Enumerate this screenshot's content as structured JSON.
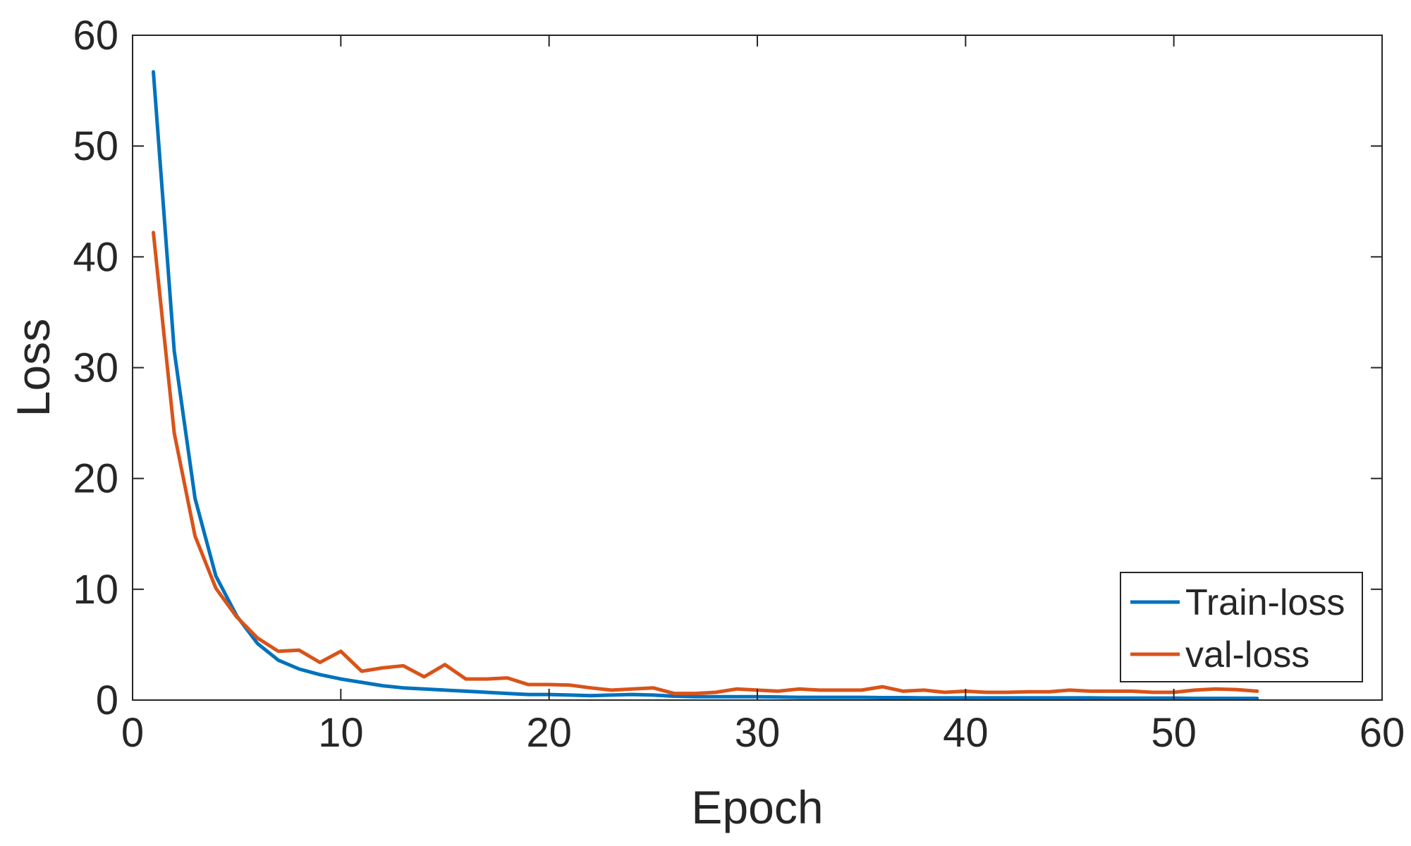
{
  "chart_data": {
    "type": "line",
    "title": "",
    "xlabel": "Epoch",
    "ylabel": "Loss",
    "xlim": [
      0,
      60
    ],
    "ylim": [
      0,
      60
    ],
    "xticks": [
      0,
      10,
      20,
      30,
      40,
      50,
      60
    ],
    "yticks": [
      0,
      10,
      20,
      30,
      40,
      50,
      60
    ],
    "grid": false,
    "legend_position": "bottom-right",
    "x": [
      1,
      2,
      3,
      4,
      5,
      6,
      7,
      8,
      9,
      10,
      11,
      12,
      13,
      14,
      15,
      16,
      17,
      18,
      19,
      20,
      21,
      22,
      23,
      24,
      25,
      26,
      27,
      28,
      29,
      30,
      31,
      32,
      33,
      34,
      35,
      36,
      37,
      38,
      39,
      40,
      41,
      42,
      43,
      44,
      45,
      46,
      47,
      48,
      49,
      50,
      51,
      52,
      53,
      54
    ],
    "series": [
      {
        "name": "Train-loss",
        "color": "#0072BD",
        "values": [
          56.7,
          31.5,
          18.2,
          11.2,
          7.6,
          5.1,
          3.6,
          2.8,
          2.3,
          1.9,
          1.6,
          1.3,
          1.1,
          1.0,
          0.9,
          0.8,
          0.7,
          0.6,
          0.5,
          0.5,
          0.45,
          0.4,
          0.45,
          0.5,
          0.45,
          0.35,
          0.3,
          0.3,
          0.3,
          0.3,
          0.28,
          0.25,
          0.25,
          0.25,
          0.25,
          0.22,
          0.22,
          0.2,
          0.2,
          0.2,
          0.2,
          0.2,
          0.2,
          0.2,
          0.2,
          0.2,
          0.18,
          0.18,
          0.18,
          0.18,
          0.15,
          0.15,
          0.15,
          0.15
        ]
      },
      {
        "name": "val-loss",
        "color": "#D95319",
        "values": [
          42.2,
          24.1,
          14.8,
          10.1,
          7.5,
          5.6,
          4.4,
          4.5,
          3.4,
          4.4,
          2.6,
          2.9,
          3.1,
          2.1,
          3.2,
          1.9,
          1.9,
          2.0,
          1.4,
          1.4,
          1.35,
          1.1,
          0.9,
          1.0,
          1.1,
          0.6,
          0.6,
          0.7,
          1.0,
          0.9,
          0.8,
          1.0,
          0.9,
          0.9,
          0.9,
          1.2,
          0.8,
          0.9,
          0.7,
          0.8,
          0.7,
          0.7,
          0.75,
          0.75,
          0.9,
          0.8,
          0.8,
          0.8,
          0.7,
          0.7,
          0.9,
          1.0,
          0.95,
          0.8
        ]
      }
    ]
  }
}
